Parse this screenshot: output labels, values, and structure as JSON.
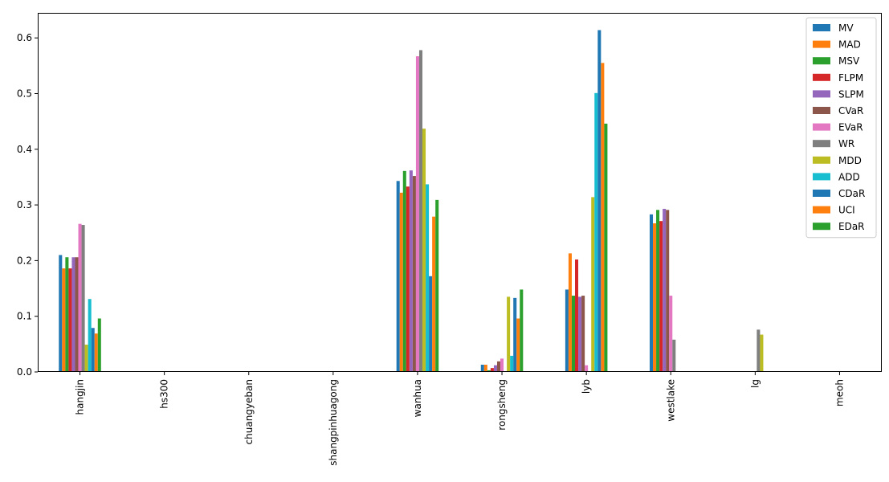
{
  "chart_data": {
    "type": "bar",
    "categories": [
      "hangjin",
      "hs300",
      "chuangyeban",
      "shangpinhuagong",
      "wanhua",
      "rongsheng",
      "lyb",
      "westlake",
      "lg",
      "meoh"
    ],
    "ylim": [
      0,
      0.645
    ],
    "yticks": [
      "0.0",
      "0.1",
      "0.2",
      "0.3",
      "0.4",
      "0.5",
      "0.6"
    ],
    "ytick_values": [
      0.0,
      0.1,
      0.2,
      0.3,
      0.4,
      0.5,
      0.6
    ],
    "grid": false,
    "legend_position": "top-right",
    "series": [
      {
        "name": "MV",
        "color": "#1f77b4",
        "values": [
          0.21,
          0,
          0,
          0,
          0.343,
          0.013,
          0.148,
          0.283,
          0,
          0
        ]
      },
      {
        "name": "MAD",
        "color": "#ff7f0e",
        "values": [
          0.186,
          0,
          0,
          0,
          0.322,
          0.013,
          0.213,
          0.267,
          0,
          0
        ]
      },
      {
        "name": "MSV",
        "color": "#2ca02c",
        "values": [
          0.206,
          0,
          0,
          0,
          0.361,
          0.003,
          0.137,
          0.291,
          0,
          0
        ]
      },
      {
        "name": "FLPM",
        "color": "#d62728",
        "values": [
          0.186,
          0,
          0,
          0,
          0.333,
          0.007,
          0.202,
          0.271,
          0,
          0
        ]
      },
      {
        "name": "SLPM",
        "color": "#9467bd",
        "values": [
          0.206,
          0,
          0,
          0,
          0.362,
          0.012,
          0.135,
          0.293,
          0,
          0
        ]
      },
      {
        "name": "CVaR",
        "color": "#8c564b",
        "values": [
          0.206,
          0,
          0,
          0,
          0.352,
          0.019,
          0.137,
          0.291,
          0,
          0
        ]
      },
      {
        "name": "EVaR",
        "color": "#e377c2",
        "values": [
          0.266,
          0,
          0,
          0,
          0.567,
          0.024,
          0.012,
          0.137,
          0,
          0
        ]
      },
      {
        "name": "WR",
        "color": "#7f7f7f",
        "values": [
          0.264,
          0,
          0,
          0,
          0.578,
          0,
          0,
          0.058,
          0.076,
          0
        ]
      },
      {
        "name": "MDD",
        "color": "#bcbd22",
        "values": [
          0.049,
          0,
          0,
          0,
          0.437,
          0.135,
          0.314,
          0,
          0.067,
          0
        ]
      },
      {
        "name": "ADD",
        "color": "#17becf",
        "values": [
          0.131,
          0,
          0,
          0,
          0.337,
          0.029,
          0.501,
          0,
          0,
          0
        ]
      },
      {
        "name": "CDaR",
        "color": "#1f77b4",
        "values": [
          0.079,
          0,
          0,
          0,
          0.172,
          0.133,
          0.614,
          0,
          0,
          0
        ]
      },
      {
        "name": "UCI",
        "color": "#ff7f0e",
        "values": [
          0.069,
          0,
          0,
          0,
          0.279,
          0.096,
          0.555,
          0,
          0,
          0
        ]
      },
      {
        "name": "EDaR",
        "color": "#2ca02c",
        "values": [
          0.096,
          0,
          0,
          0,
          0.309,
          0.148,
          0.446,
          0,
          0,
          0
        ]
      }
    ]
  }
}
